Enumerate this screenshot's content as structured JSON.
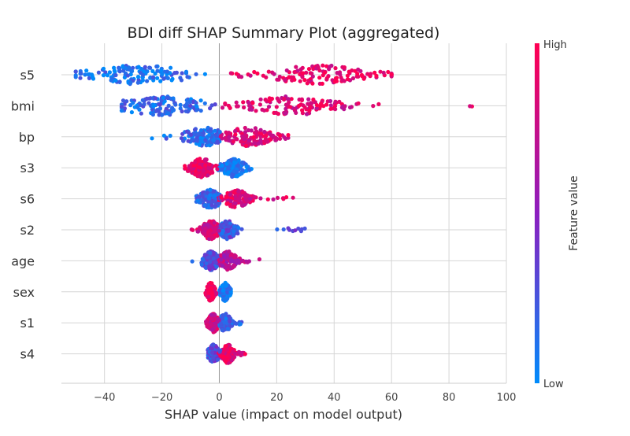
{
  "chart_data": {
    "type": "scatter",
    "subtype": "shap-beeswarm",
    "title": "BDI diff  SHAP Summary Plot (aggregated)",
    "xlabel": "SHAP value (impact on model output)",
    "xlim": [
      -55,
      100
    ],
    "xticks": [
      -40,
      -20,
      0,
      20,
      40,
      60,
      80,
      100
    ],
    "xtick_labels": [
      "−40",
      "−20",
      "0",
      "20",
      "40",
      "60",
      "80",
      "100"
    ],
    "grid": true,
    "colorbar": {
      "label": "Feature value",
      "high_label": "High",
      "low_label": "Low",
      "low_color": "#008bfb",
      "mid_color": "#8c1ebf",
      "high_color": "#ff0052"
    },
    "features": [
      {
        "name": "s5",
        "min": -50,
        "max": 60,
        "neg_color": 0.1,
        "pos_color": 0.9,
        "neg_center": -28,
        "pos_center": 35,
        "spread": 18
      },
      {
        "name": "bmi",
        "min": -34,
        "max": 93,
        "neg_color": 0.15,
        "pos_color": 0.85,
        "neg_center": -20,
        "pos_center": 25,
        "spread": 16
      },
      {
        "name": "bp",
        "min": -27,
        "max": 24,
        "neg_color": 0.15,
        "pos_color": 0.85,
        "neg_center": -5,
        "pos_center": 10,
        "spread": 8
      },
      {
        "name": "s3",
        "min": -12,
        "max": 12,
        "neg_color": 0.9,
        "pos_color": 0.1,
        "neg_center": -6,
        "pos_center": 5,
        "spread": 4
      },
      {
        "name": "s6",
        "min": -8,
        "max": 27,
        "neg_color": 0.2,
        "pos_color": 0.85,
        "neg_center": -3,
        "pos_center": 6,
        "spread": 4
      },
      {
        "name": "s2",
        "min": -10,
        "max": 30,
        "neg_color": 0.8,
        "pos_color": 0.25,
        "neg_center": -3,
        "pos_center": 3,
        "spread": 3
      },
      {
        "name": "age",
        "min": -10,
        "max": 15,
        "neg_color": 0.3,
        "pos_color": 0.7,
        "neg_center": -3,
        "pos_center": 3,
        "spread": 3
      },
      {
        "name": "sex",
        "min": -5,
        "max": 4,
        "neg_color": 0.95,
        "pos_color": 0.05,
        "neg_center": -3,
        "pos_center": 2,
        "spread": 1.5
      },
      {
        "name": "s1",
        "min": -5,
        "max": 8,
        "neg_color": 0.8,
        "pos_color": 0.2,
        "neg_center": -2,
        "pos_center": 2,
        "spread": 2
      },
      {
        "name": "s4",
        "min": -4,
        "max": 9,
        "neg_color": 0.3,
        "pos_color": 0.9,
        "neg_center": -2,
        "pos_center": 3,
        "spread": 2
      }
    ]
  }
}
